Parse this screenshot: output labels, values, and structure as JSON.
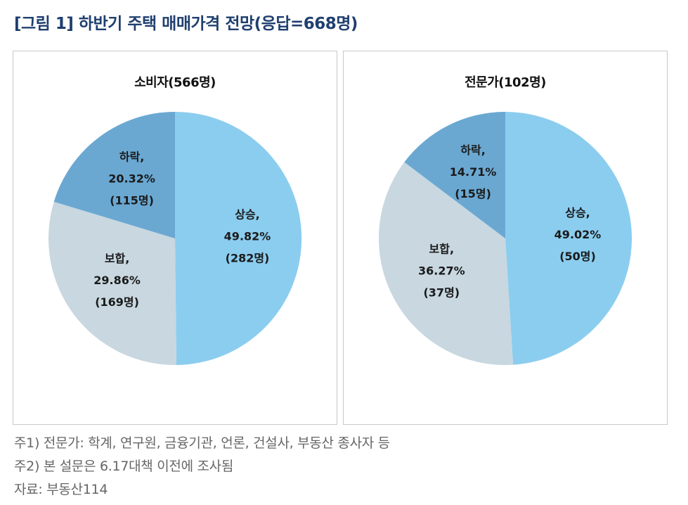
{
  "title": "[그림 1] 하반기 주택 매매가격 전망(응답=668명)",
  "colors": {
    "up": "#8bcdef",
    "down": "#6aa8d2",
    "hold": "#c8d7e0",
    "title": "#1f3f6e"
  },
  "chart_data": [
    {
      "type": "pie",
      "title": "소비자(566명)",
      "slices": [
        {
          "name": "상승",
          "value": 49.82,
          "label": "상승,",
          "pct": "49.82%",
          "count": "(282명)"
        },
        {
          "name": "보합",
          "value": 29.86,
          "label": "보합,",
          "pct": "29.86%",
          "count": "(169명)"
        },
        {
          "name": "하락",
          "value": 20.32,
          "label": "하락,",
          "pct": "20.32%",
          "count": "(115명)"
        }
      ]
    },
    {
      "type": "pie",
      "title": "전문가(102명)",
      "slices": [
        {
          "name": "상승",
          "value": 49.02,
          "label": "상승,",
          "pct": "49.02%",
          "count": "(50명)"
        },
        {
          "name": "보합",
          "value": 36.27,
          "label": "보합,",
          "pct": "36.27%",
          "count": "(37명)"
        },
        {
          "name": "하락",
          "value": 14.71,
          "label": "하락,",
          "pct": "14.71%",
          "count": "(15명)"
        }
      ]
    }
  ],
  "notes": [
    "주1) 전문가: 학계, 연구원, 금융기관, 언론, 건설사, 부동산 종사자 등",
    "주2) 본 설문은 6.17대책 이전에 조사됨",
    "자료: 부동산114"
  ]
}
